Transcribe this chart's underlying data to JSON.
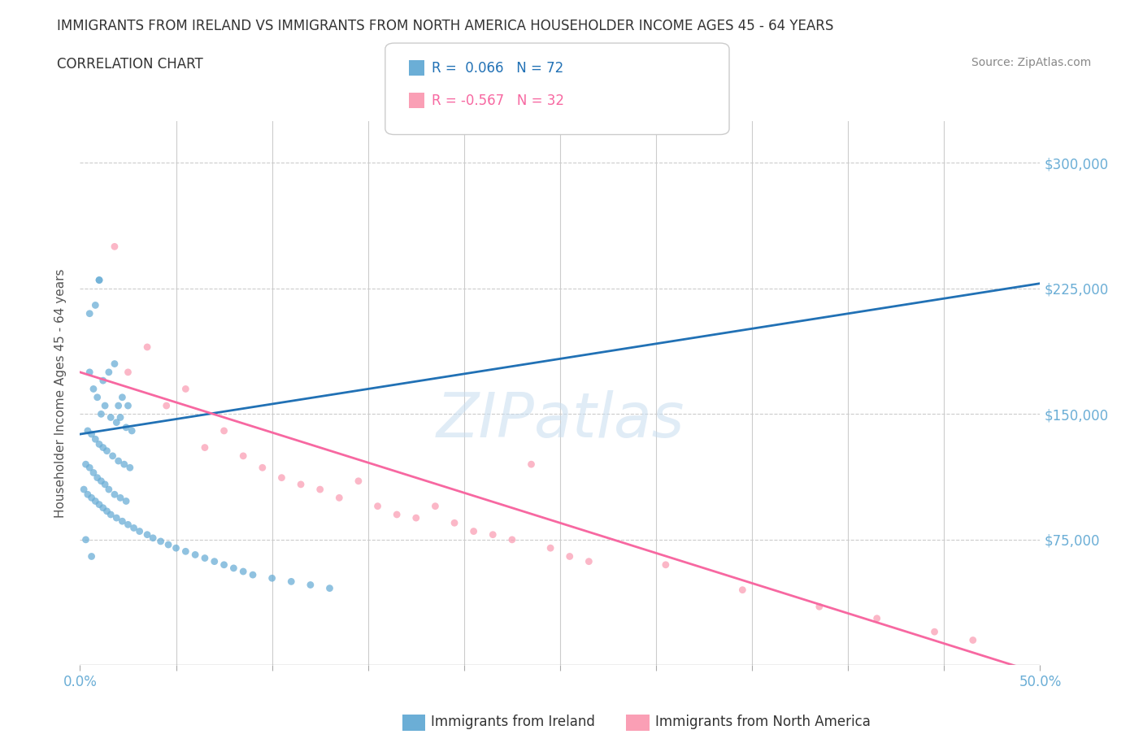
{
  "title_line1": "IMMIGRANTS FROM IRELAND VS IMMIGRANTS FROM NORTH AMERICA HOUSEHOLDER INCOME AGES 45 - 64 YEARS",
  "title_line2": "CORRELATION CHART",
  "source": "Source: ZipAtlas.com",
  "ylabel": "Householder Income Ages 45 - 64 years",
  "xlim": [
    0.0,
    0.5
  ],
  "ylim": [
    0,
    325000
  ],
  "xticks": [
    0.0,
    0.05,
    0.1,
    0.15,
    0.2,
    0.25,
    0.3,
    0.35,
    0.4,
    0.45,
    0.5
  ],
  "ytick_positions": [
    0,
    75000,
    150000,
    225000,
    300000
  ],
  "ytick_labels_right": [
    "",
    "$75,000",
    "$150,000",
    "$225,000",
    "$300,000"
  ],
  "blue_color": "#6baed6",
  "pink_color": "#fa9fb5",
  "trend_blue_color": "#2171b5",
  "trend_pink_color": "#f768a1",
  "blue_label": "Immigrants from Ireland",
  "pink_label": "Immigrants from North America",
  "legend_blue_text": "R =  0.066   N = 72",
  "legend_pink_text": "R = -0.567   N = 32",
  "watermark": "ZIPatlas",
  "blue_scatter_x": [
    0.01,
    0.01,
    0.005,
    0.008,
    0.012,
    0.015,
    0.018,
    0.02,
    0.022,
    0.025,
    0.005,
    0.007,
    0.009,
    0.011,
    0.013,
    0.016,
    0.019,
    0.021,
    0.024,
    0.027,
    0.004,
    0.006,
    0.008,
    0.01,
    0.012,
    0.014,
    0.017,
    0.02,
    0.023,
    0.026,
    0.003,
    0.005,
    0.007,
    0.009,
    0.011,
    0.013,
    0.015,
    0.018,
    0.021,
    0.024,
    0.002,
    0.004,
    0.006,
    0.008,
    0.01,
    0.012,
    0.014,
    0.016,
    0.019,
    0.022,
    0.025,
    0.028,
    0.031,
    0.035,
    0.038,
    0.042,
    0.046,
    0.05,
    0.055,
    0.06,
    0.065,
    0.07,
    0.075,
    0.08,
    0.085,
    0.09,
    0.1,
    0.11,
    0.12,
    0.13,
    0.003,
    0.006
  ],
  "blue_scatter_y": [
    230000,
    230000,
    210000,
    215000,
    170000,
    175000,
    180000,
    155000,
    160000,
    155000,
    175000,
    165000,
    160000,
    150000,
    155000,
    148000,
    145000,
    148000,
    142000,
    140000,
    140000,
    138000,
    135000,
    132000,
    130000,
    128000,
    125000,
    122000,
    120000,
    118000,
    120000,
    118000,
    115000,
    112000,
    110000,
    108000,
    105000,
    102000,
    100000,
    98000,
    105000,
    102000,
    100000,
    98000,
    96000,
    94000,
    92000,
    90000,
    88000,
    86000,
    84000,
    82000,
    80000,
    78000,
    76000,
    74000,
    72000,
    70000,
    68000,
    66000,
    64000,
    62000,
    60000,
    58000,
    56000,
    54000,
    52000,
    50000,
    48000,
    46000,
    75000,
    65000
  ],
  "pink_scatter_x": [
    0.018,
    0.025,
    0.035,
    0.045,
    0.055,
    0.065,
    0.075,
    0.085,
    0.095,
    0.105,
    0.115,
    0.125,
    0.135,
    0.145,
    0.155,
    0.165,
    0.175,
    0.185,
    0.195,
    0.205,
    0.215,
    0.225,
    0.235,
    0.245,
    0.255,
    0.265,
    0.305,
    0.345,
    0.385,
    0.415,
    0.445,
    0.465
  ],
  "pink_scatter_y": [
    250000,
    175000,
    190000,
    155000,
    165000,
    130000,
    140000,
    125000,
    118000,
    112000,
    108000,
    105000,
    100000,
    110000,
    95000,
    90000,
    88000,
    95000,
    85000,
    80000,
    78000,
    75000,
    120000,
    70000,
    65000,
    62000,
    60000,
    45000,
    35000,
    28000,
    20000,
    15000
  ],
  "blue_trend_x": [
    0.0,
    0.5
  ],
  "blue_trend_y": [
    138000,
    228000
  ],
  "pink_trend_x": [
    0.0,
    0.5
  ],
  "pink_trend_y": [
    175000,
    -5000
  ],
  "axis_color": "#6baed6",
  "grid_color": "#cccccc",
  "background_color": "#ffffff"
}
